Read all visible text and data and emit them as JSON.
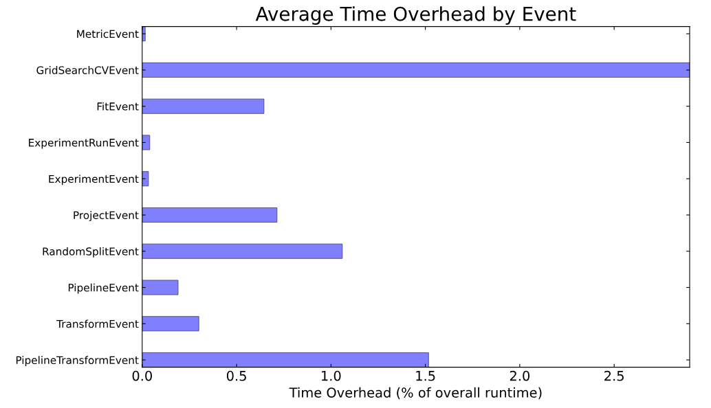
{
  "chart_data": {
    "type": "bar",
    "orientation": "horizontal",
    "title": "Average Time Overhead by Event",
    "xlabel": "Time Overhead (% of overall runtime)",
    "categories": [
      "MetricEvent",
      "GridSearchCVEvent",
      "FitEvent",
      "ExperimentRunEvent",
      "ExperimentEvent",
      "ProjectEvent",
      "RandomSplitEvent",
      "PipelineEvent",
      "TransformEvent",
      "PipelineTransformEvent"
    ],
    "values": [
      0.016,
      2.9,
      0.645,
      0.04,
      0.033,
      0.714,
      1.06,
      0.19,
      0.3,
      1.517
    ],
    "color": "#8080ff",
    "xlim": [
      0,
      2.9
    ],
    "xticks": [
      {
        "value": 0,
        "label": "0.0"
      },
      0.5,
      {
        "value": 1,
        "label": "1.0"
      },
      1.5,
      {
        "value": 2,
        "label": "2.0"
      },
      2.5
    ],
    "grid": false
  }
}
